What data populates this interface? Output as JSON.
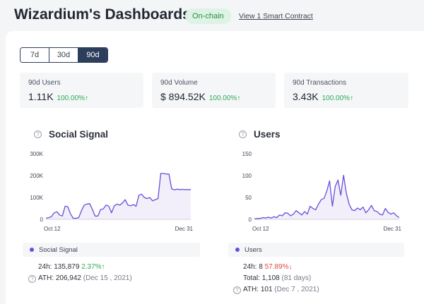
{
  "header": {
    "title": "Wizardium's Dashboards",
    "badge": "On-chain",
    "contract_link": "View 1 Smart Contract"
  },
  "range": {
    "options": [
      "7d",
      "30d",
      "90d"
    ],
    "selected": "90d"
  },
  "stats": [
    {
      "label": "90d Users",
      "value": "1.11K",
      "change": "100.00%↑"
    },
    {
      "label": "90d Volume",
      "value": "$ 894.52K",
      "change": "100.00%↑"
    },
    {
      "label": "90d Transactions",
      "value": "3.43K",
      "change": "100.00%↑"
    }
  ],
  "colors": {
    "accent": "#6a4fd8",
    "positive": "#2faa57",
    "negative": "#e2473f",
    "dark": "#2c3e5c"
  },
  "social_signal": {
    "title": "Social Signal",
    "legend": "Social Signal",
    "h24_label": "24h:",
    "h24_value": "135,879",
    "h24_change": "2.37%↑",
    "ath_label": "ATH:",
    "ath_value": "206,942",
    "ath_date": "(Dec 15 , 2021)"
  },
  "users": {
    "title": "Users",
    "legend": "Users",
    "h24_label": "24h:",
    "h24_value": "8",
    "h24_change": "57.89%↓",
    "total_label": "Total:",
    "total_value": "1,108",
    "total_days": "(81 days)",
    "ath_label": "ATH:",
    "ath_value": "101",
    "ath_date": "(Dec 7 , 2021)"
  },
  "chart_data": [
    {
      "type": "area",
      "title": "Social Signal",
      "x_start": "Oct 12",
      "x_end": "Dec 31",
      "yticks": [
        "300K",
        "200K",
        "100K",
        "0"
      ],
      "ylim": [
        0,
        300000
      ],
      "grid": false,
      "series": [
        {
          "name": "Social Signal",
          "values": [
            5000,
            8000,
            12000,
            30000,
            35000,
            20000,
            15000,
            60000,
            58000,
            25000,
            5000,
            5000,
            8000,
            40000,
            65000,
            70000,
            72000,
            45000,
            15000,
            15000,
            45000,
            48000,
            65000,
            60000,
            30000,
            62000,
            70000,
            65000,
            75000,
            90000,
            65000,
            62000,
            68000,
            60000,
            110000,
            115000,
            100000,
            95000,
            100000,
            85000,
            90000,
            95000,
            210000,
            210000,
            207000,
            207000,
            140000,
            135000,
            138000,
            136000,
            137000,
            136000,
            136000,
            136000
          ]
        }
      ]
    },
    {
      "type": "area",
      "title": "Users",
      "x_start": "Oct 12",
      "x_end": "Dec 31",
      "yticks": [
        "150",
        "100",
        "50",
        "0"
      ],
      "ylim": [
        0,
        150
      ],
      "grid": false,
      "series": [
        {
          "name": "Users",
          "values": [
            1,
            2,
            2,
            4,
            3,
            5,
            3,
            6,
            4,
            10,
            8,
            15,
            14,
            8,
            12,
            20,
            15,
            10,
            18,
            12,
            30,
            25,
            22,
            35,
            45,
            48,
            65,
            88,
            30,
            75,
            90,
            55,
            101,
            60,
            35,
            22,
            20,
            26,
            22,
            28,
            15,
            22,
            32,
            20,
            18,
            12,
            10,
            25,
            16,
            12,
            15,
            8,
            4
          ]
        }
      ]
    }
  ]
}
